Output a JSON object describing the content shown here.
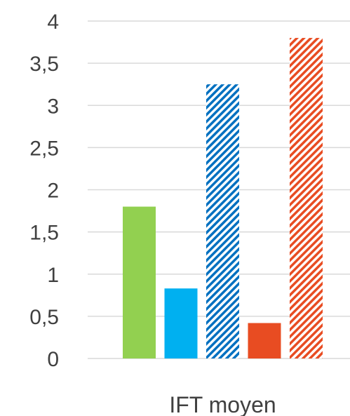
{
  "chart_data": {
    "type": "bar",
    "categories": [
      "IFT moyen"
    ],
    "series": [
      {
        "values": [
          1.8
        ],
        "color": "#92d050",
        "pattern": "solid"
      },
      {
        "values": [
          0.83
        ],
        "color": "#00b0f0",
        "pattern": "solid"
      },
      {
        "values": [
          3.25
        ],
        "color": "#0070c0",
        "pattern": "hatch"
      },
      {
        "values": [
          0.42
        ],
        "color": "#e84c22",
        "pattern": "solid"
      },
      {
        "values": [
          3.8
        ],
        "color": "#e84c22",
        "pattern": "hatch"
      }
    ],
    "ylim": [
      0,
      4
    ],
    "yticks": [
      "0",
      "0,5",
      "1",
      "1,5",
      "2",
      "2,5",
      "3",
      "3,5",
      "4"
    ],
    "grid": true,
    "legend": "none"
  }
}
